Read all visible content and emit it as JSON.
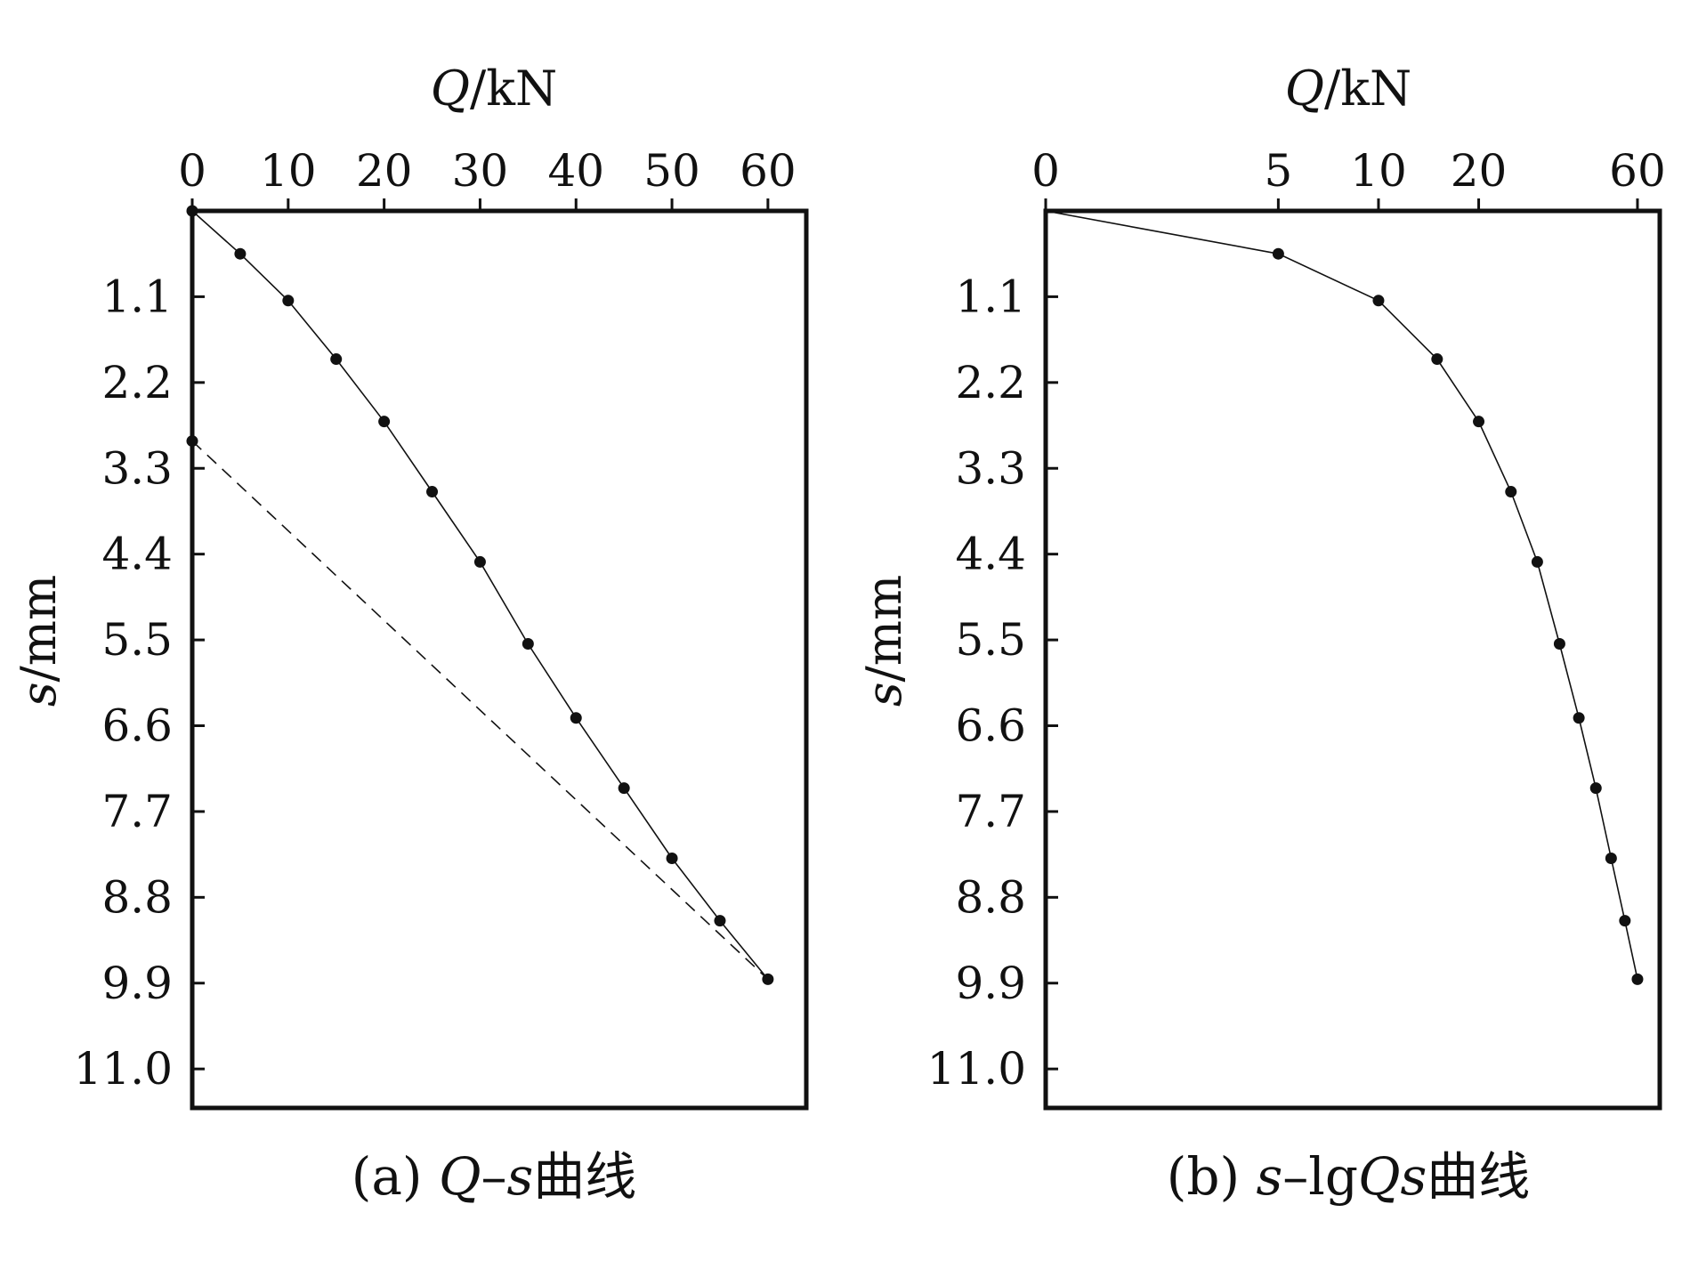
{
  "chart_data": [
    {
      "id": "a",
      "type": "line",
      "x_axis_position": "top",
      "y_axis_inverted": true,
      "x_scale": "linear",
      "x_label": {
        "italic": "Q",
        "rest": "/kN"
      },
      "y_label": {
        "italic": "s",
        "rest": "/mm"
      },
      "xlim": [
        0,
        64
      ],
      "ylim": [
        0,
        11.5
      ],
      "x_ticks": [
        0,
        10,
        20,
        30,
        40,
        50,
        60
      ],
      "y_ticks": [
        "1.1",
        "2.2",
        "3.3",
        "4.4",
        "5.5",
        "6.6",
        "7.7",
        "8.8",
        "9.9",
        "11.0"
      ],
      "grid": false,
      "series": [
        {
          "x": [
            0,
            5,
            10,
            15,
            20,
            25,
            30,
            35,
            40,
            45,
            50,
            55,
            60
          ],
          "y": [
            0,
            0.55,
            1.15,
            1.9,
            2.7,
            3.6,
            4.5,
            5.55,
            6.5,
            7.4,
            8.3,
            9.1,
            9.85
          ],
          "style": "solid-with-markers"
        },
        {
          "x": [
            0,
            60
          ],
          "y": [
            2.95,
            9.85
          ],
          "style": "dashed"
        }
      ],
      "caption": {
        "prefix": "(a) ",
        "italic1": "Q",
        "dash": "–",
        "italic2": "s",
        "suffix": "曲线"
      }
    },
    {
      "id": "b",
      "type": "line",
      "x_axis_position": "top",
      "y_axis_inverted": true,
      "x_scale": "log",
      "x_label": {
        "italic": "Q",
        "rest": "/kN"
      },
      "y_label": {
        "italic": "s",
        "rest": "/mm"
      },
      "xlim_log": [
        1,
        70
      ],
      "x_ticks_labels": [
        "0",
        "5",
        "10",
        "20",
        "60"
      ],
      "x_ticks_values": [
        1,
        5,
        10,
        20,
        60
      ],
      "ylim": [
        0,
        11.5
      ],
      "y_ticks": [
        "1.1",
        "2.2",
        "3.3",
        "4.4",
        "5.5",
        "6.6",
        "7.7",
        "8.8",
        "9.9",
        "11.0"
      ],
      "grid": false,
      "series": [
        {
          "x": [
            1,
            5,
            10,
            15,
            20,
            25,
            30,
            35,
            40,
            45,
            50,
            55,
            60
          ],
          "y": [
            0,
            0.55,
            1.15,
            1.9,
            2.7,
            3.6,
            4.5,
            5.55,
            6.5,
            7.4,
            8.3,
            9.1,
            9.85
          ],
          "markers_from_index": 1,
          "style": "solid-with-markers"
        }
      ],
      "caption": {
        "prefix": "(b) ",
        "italic1": "s",
        "dash": "–lg",
        "italic2": "Qs",
        "suffix": "曲线"
      }
    }
  ]
}
